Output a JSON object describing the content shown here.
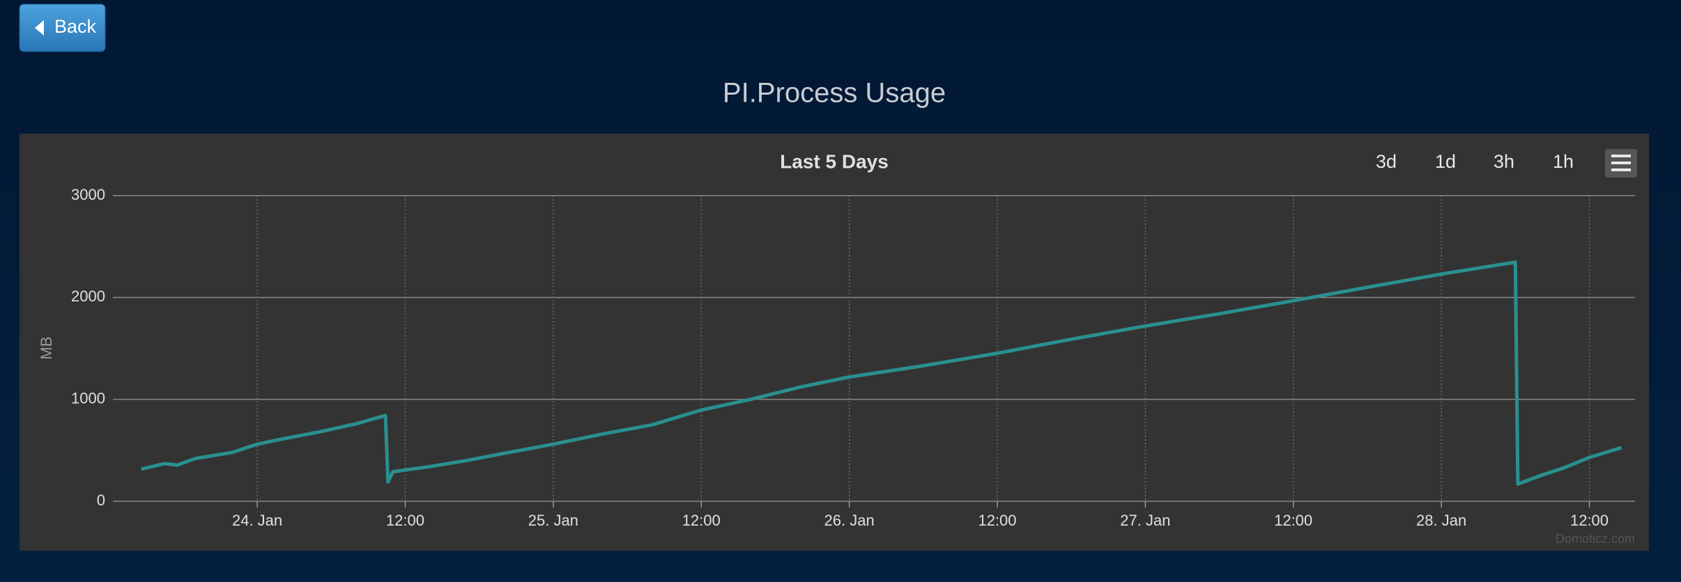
{
  "header": {
    "back": "Back",
    "title": "PI.Process Usage"
  },
  "chart_data": {
    "type": "line",
    "title": "Last 5 Days",
    "y_label": "MB",
    "range_buttons": [
      "3d",
      "1d",
      "3h",
      "1h"
    ],
    "credit": "Domoticz.com",
    "x": [
      -9.4,
      -7.5,
      -6.5,
      -5,
      -2,
      0,
      2,
      5,
      8,
      10.4,
      10.6,
      11,
      14,
      17,
      20,
      24,
      28,
      32,
      36,
      40,
      44,
      48,
      54,
      60,
      66,
      72,
      78,
      84,
      90,
      96,
      102,
      102.2,
      104,
      106,
      108,
      110.6
    ],
    "values": [
      316,
      370,
      355,
      420,
      480,
      560,
      610,
      680,
      760,
      842,
      190,
      290,
      340,
      400,
      470,
      560,
      660,
      750,
      895,
      1000,
      1120,
      1220,
      1330,
      1453,
      1590,
      1720,
      1840,
      1968,
      2100,
      2230,
      2347,
      168,
      250,
      330,
      430,
      526
    ],
    "color": "#2a8f8f",
    "xlim": [
      -11.7,
      111.7
    ],
    "xticks": [
      {
        "value": 0,
        "label": "24. Jan"
      },
      {
        "value": 12,
        "label": "12:00"
      },
      {
        "value": 24,
        "label": "25. Jan"
      },
      {
        "value": 36,
        "label": "12:00"
      },
      {
        "value": 48,
        "label": "26. Jan"
      },
      {
        "value": 60,
        "label": "12:00"
      },
      {
        "value": 72,
        "label": "27. Jan"
      },
      {
        "value": 84,
        "label": "12:00"
      },
      {
        "value": 96,
        "label": "28. Jan"
      },
      {
        "value": 108,
        "label": "12:00"
      }
    ],
    "ylim": [
      0,
      3000
    ],
    "yticks": [
      0,
      1000,
      2000,
      3000
    ],
    "grid": true
  }
}
